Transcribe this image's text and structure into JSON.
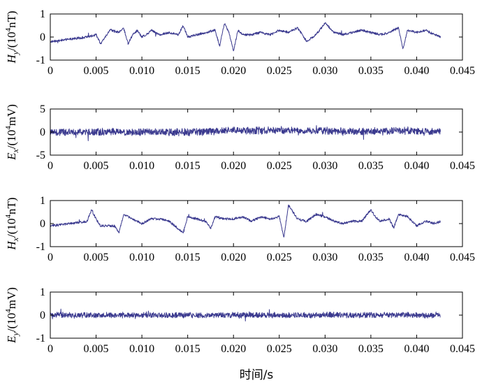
{
  "colors": {
    "trace": "#3b3a8f",
    "axis": "#000000"
  },
  "chart_data": [
    {
      "type": "line",
      "ylabel": {
        "main": "H",
        "sub": "y",
        "unit_pre": "/(10",
        "exp": "4",
        "unit_post": "nT)"
      },
      "xlim": [
        0,
        0.045
      ],
      "ylim": [
        -1,
        1
      ],
      "xticks": [
        "0",
        "0.005",
        "0.010",
        "0.015",
        "0.020",
        "0.025",
        "0.030",
        "0.035",
        "0.040",
        "0.045"
      ],
      "yticks": [
        "-1",
        "0",
        "1"
      ],
      "ytick_values": [
        -1,
        0,
        1
      ],
      "data_xmax": 0.0426,
      "noise": 0.06,
      "series": [
        {
          "x": [
            0.0,
            0.002,
            0.004,
            0.005,
            0.0055,
            0.0065,
            0.0075,
            0.008,
            0.0085,
            0.009,
            0.0095,
            0.01,
            0.0105,
            0.011,
            0.012,
            0.013,
            0.014,
            0.0145,
            0.015,
            0.016,
            0.017,
            0.018,
            0.0185,
            0.019,
            0.0195,
            0.02,
            0.0205,
            0.021,
            0.022,
            0.023,
            0.024,
            0.025,
            0.026,
            0.027,
            0.028,
            0.029,
            0.03,
            0.031,
            0.032,
            0.033,
            0.034,
            0.035,
            0.036,
            0.037,
            0.038,
            0.0385,
            0.039,
            0.04,
            0.041,
            0.042,
            0.0426
          ],
          "y": [
            -0.2,
            -0.1,
            0.0,
            0.1,
            -0.3,
            0.3,
            0.2,
            0.4,
            -0.3,
            0.1,
            0.3,
            0.0,
            0.1,
            0.3,
            0.1,
            0.2,
            0.1,
            0.5,
            0.0,
            0.1,
            0.2,
            0.3,
            -0.4,
            0.6,
            0.2,
            -0.6,
            0.3,
            0.1,
            0.1,
            0.2,
            0.1,
            0.3,
            0.2,
            0.4,
            -0.2,
            0.1,
            0.6,
            0.2,
            0.1,
            0.2,
            0.3,
            0.2,
            0.1,
            0.2,
            0.4,
            -0.5,
            0.3,
            0.2,
            0.3,
            0.1,
            0.0
          ]
        }
      ]
    },
    {
      "type": "line",
      "ylabel": {
        "main": "E",
        "sub": "x",
        "unit_pre": "/(10",
        "exp": "4",
        "unit_post": "mV)"
      },
      "xlim": [
        0,
        0.045
      ],
      "ylim": [
        -5,
        5
      ],
      "xticks": [
        "0",
        "0.005",
        "0.010",
        "0.015",
        "0.020",
        "0.025",
        "0.030",
        "0.035",
        "0.040",
        "0.045"
      ],
      "yticks": [
        "-5",
        "0",
        "5"
      ],
      "ytick_values": [
        -5,
        0,
        5
      ],
      "data_xmax": 0.0426,
      "noise": 0.9,
      "series": [
        {
          "x": [
            0.0,
            0.005,
            0.01,
            0.015,
            0.018,
            0.02,
            0.022,
            0.025,
            0.027,
            0.03,
            0.032,
            0.035,
            0.038,
            0.04,
            0.0426
          ],
          "y": [
            0,
            0,
            0,
            0,
            0.2,
            0.5,
            0.3,
            0.4,
            0.2,
            0.3,
            0.1,
            0.1,
            0.3,
            0.1,
            0
          ]
        }
      ]
    },
    {
      "type": "line",
      "ylabel": {
        "main": "H",
        "sub": "x",
        "unit_pre": "/(10",
        "exp": "4",
        "unit_post": "nT)"
      },
      "xlim": [
        0,
        0.045
      ],
      "ylim": [
        -1,
        1
      ],
      "xticks": [
        "0",
        "0.005",
        "0.010",
        "0.015",
        "0.020",
        "0.025",
        "0.030",
        "0.035",
        "0.040",
        "0.045"
      ],
      "yticks": [
        "-1",
        "0",
        "1"
      ],
      "ytick_values": [
        -1,
        0,
        1
      ],
      "data_xmax": 0.0426,
      "noise": 0.06,
      "series": [
        {
          "x": [
            0.0,
            0.002,
            0.004,
            0.0045,
            0.005,
            0.0055,
            0.006,
            0.007,
            0.0075,
            0.008,
            0.009,
            0.0095,
            0.01,
            0.011,
            0.012,
            0.013,
            0.0145,
            0.015,
            0.016,
            0.017,
            0.0175,
            0.018,
            0.019,
            0.02,
            0.021,
            0.022,
            0.023,
            0.024,
            0.025,
            0.0255,
            0.026,
            0.027,
            0.028,
            0.029,
            0.03,
            0.031,
            0.032,
            0.033,
            0.034,
            0.035,
            0.0355,
            0.036,
            0.037,
            0.0375,
            0.038,
            0.039,
            0.04,
            0.041,
            0.042,
            0.0426
          ],
          "y": [
            -0.1,
            0.0,
            0.1,
            0.6,
            0.2,
            -0.1,
            -0.1,
            -0.1,
            -0.4,
            0.4,
            0.2,
            0.1,
            0.0,
            0.2,
            0.2,
            0.1,
            -0.4,
            0.3,
            0.2,
            0.1,
            -0.2,
            0.3,
            0.2,
            0.2,
            0.3,
            0.1,
            0.3,
            0.2,
            0.3,
            -0.6,
            0.8,
            0.2,
            0.1,
            0.4,
            0.3,
            0.1,
            0.0,
            0.1,
            0.1,
            0.6,
            0.3,
            0.1,
            0.2,
            -0.2,
            0.4,
            0.3,
            -0.1,
            0.1,
            0.0,
            0.1
          ]
        }
      ]
    },
    {
      "type": "line",
      "ylabel": {
        "main": "E",
        "sub": "y",
        "unit_pre": "/(10",
        "exp": "4",
        "unit_post": "mV)"
      },
      "xlim": [
        0,
        0.045
      ],
      "ylim": [
        -1,
        1
      ],
      "xticks": [
        "0",
        "0.005",
        "0.010",
        "0.015",
        "0.020",
        "0.025",
        "0.030",
        "0.035",
        "0.040",
        "0.045"
      ],
      "yticks": [
        "-1",
        "0",
        "1"
      ],
      "ytick_values": [
        -1,
        0,
        1
      ],
      "data_xmax": 0.0426,
      "noise": 0.14,
      "series": [
        {
          "x": [
            0.0,
            0.01,
            0.02,
            0.03,
            0.04,
            0.0426
          ],
          "y": [
            0,
            0,
            0,
            0,
            0,
            0
          ]
        }
      ]
    }
  ],
  "xlabel": "时间/s"
}
